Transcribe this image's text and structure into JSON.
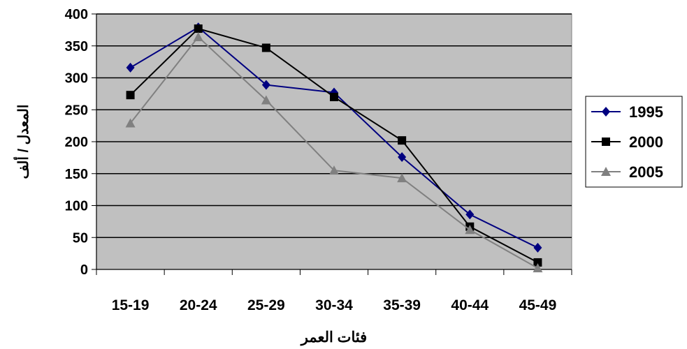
{
  "chart_data": {
    "type": "line",
    "categories": [
      "15-19",
      "20-24",
      "25-29",
      "30-34",
      "35-39",
      "40-44",
      "45-49"
    ],
    "series": [
      {
        "name": "1995",
        "values": [
          316,
          379,
          289,
          277,
          176,
          86,
          34
        ],
        "color": "#000080",
        "marker": "diamond"
      },
      {
        "name": "2000",
        "values": [
          273,
          377,
          347,
          270,
          202,
          67,
          11
        ],
        "color": "#000000",
        "marker": "square"
      },
      {
        "name": "2005",
        "values": [
          229,
          364,
          265,
          155,
          143,
          62,
          2
        ],
        "color": "#808080",
        "marker": "triangle"
      }
    ],
    "title": "",
    "xlabel": "فئات العمر",
    "ylabel": "المعدل / ألف",
    "ylim": [
      0,
      400
    ],
    "yticks": [
      "0",
      "50",
      "100",
      "150",
      "200",
      "250",
      "300",
      "350",
      "400"
    ],
    "grid": true,
    "plot_background": "#c0c0c0",
    "legend_position": "right"
  }
}
